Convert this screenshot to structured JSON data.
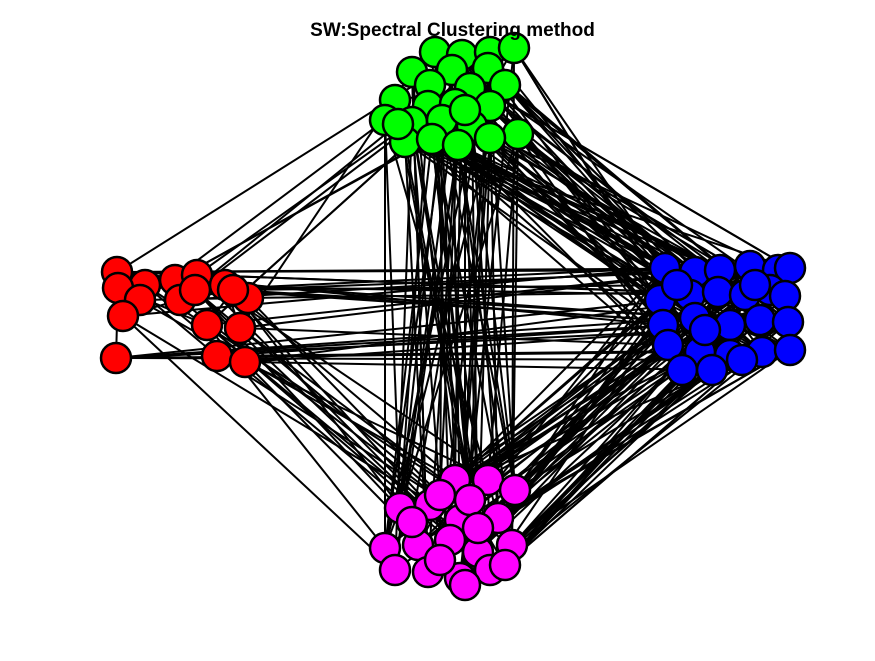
{
  "title": "SW:Spectral Clustering method",
  "colors": {
    "background": "#ffffff",
    "edge": "#000000",
    "node_stroke": "#000000"
  },
  "clusters": [
    {
      "name": "green",
      "color": "#00ff00"
    },
    {
      "name": "red",
      "color": "#ff0000"
    },
    {
      "name": "blue",
      "color": "#0000ff"
    },
    {
      "name": "magenta",
      "color": "#ff00ff"
    }
  ]
}
